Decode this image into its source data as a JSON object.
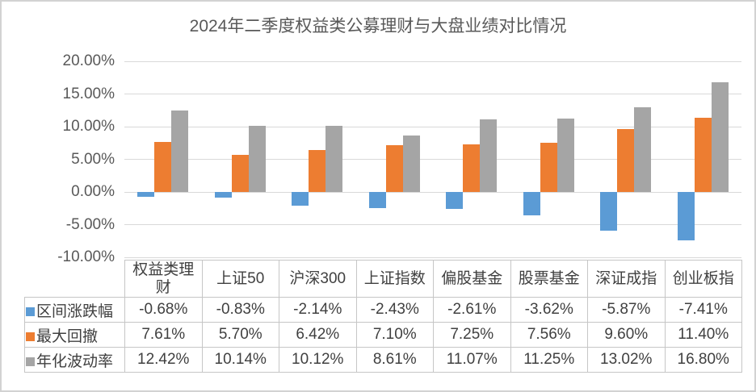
{
  "page": {
    "title": "2024年二季度权益类公募理财与大盘业绩对比情况"
  },
  "chart_data": {
    "type": "bar",
    "title": "2024年二季度权益类公募理财与大盘业绩对比情况",
    "categories": [
      "权益类理财",
      "上证50",
      "沪深300",
      "上证指数",
      "偏股基金",
      "股票基金",
      "深证成指",
      "创业板指"
    ],
    "series": [
      {
        "name": "区间涨跌幅",
        "color": "#5B9BD5",
        "values": [
          -0.68,
          -0.83,
          -2.14,
          -2.43,
          -2.61,
          -3.62,
          -5.87,
          -7.41
        ]
      },
      {
        "name": "最大回撤",
        "color": "#ED7D31",
        "values": [
          7.61,
          5.7,
          6.42,
          7.1,
          7.25,
          7.56,
          9.6,
          11.4
        ]
      },
      {
        "name": "年化波动率",
        "color": "#A5A5A5",
        "values": [
          12.42,
          10.14,
          10.12,
          8.61,
          11.07,
          11.25,
          13.02,
          16.8
        ]
      }
    ],
    "table_values": [
      [
        "-0.68%",
        "-0.83%",
        "-2.14%",
        "-2.43%",
        "-2.61%",
        "-3.62%",
        "-5.87%",
        "-7.41%"
      ],
      [
        "7.61%",
        "5.70%",
        "6.42%",
        "7.10%",
        "7.25%",
        "7.56%",
        "9.60%",
        "11.40%"
      ],
      [
        "12.42%",
        "10.14%",
        "10.12%",
        "8.61%",
        "11.07%",
        "11.25%",
        "13.02%",
        "16.80%"
      ]
    ],
    "y_axis": {
      "min": -10,
      "max": 20,
      "step": 5,
      "tick_labels": [
        "20.00%",
        "15.00%",
        "10.00%",
        "5.00%",
        "0.00%",
        "-5.00%",
        "-10.00%"
      ]
    },
    "xlabel": "",
    "ylabel": "",
    "grid": true,
    "legend_position": "data-table-left",
    "colors": {
      "gridline": "#D9D9D9",
      "axis_text": "#595959",
      "table_border": "#C6C6C6",
      "table_text": "#404040"
    }
  }
}
